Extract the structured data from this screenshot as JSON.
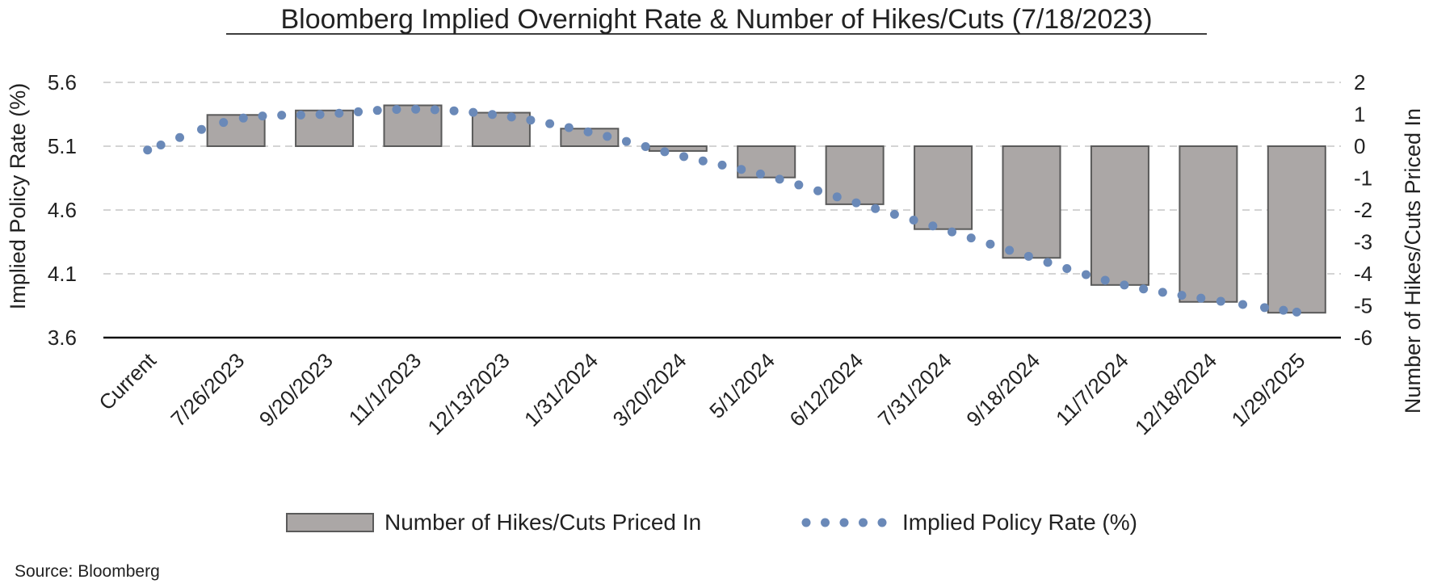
{
  "chart_data": {
    "type": "bar",
    "title": "Bloomberg Implied Overnight Rate & Number of Hikes/Cuts (7/18/2023)",
    "categories": [
      "Current",
      "7/26/2023",
      "9/20/2023",
      "11/1/2023",
      "12/13/2023",
      "1/31/2024",
      "3/20/2024",
      "5/1/2024",
      "6/12/2024",
      "7/31/2024",
      "9/18/2024",
      "11/7/2024",
      "12/18/2024",
      "1/29/2025"
    ],
    "series": [
      {
        "name": "Number of Hikes/Cuts Priced In",
        "type": "bar",
        "axis": "right",
        "color": "#aba7a6",
        "values": [
          null,
          0.98,
          1.12,
          1.28,
          1.05,
          0.55,
          -0.15,
          -0.98,
          -1.82,
          -2.6,
          -3.5,
          -4.35,
          -4.88,
          -5.22
        ]
      },
      {
        "name": "Implied Policy Rate (%)",
        "type": "dotted-line",
        "axis": "left",
        "color": "#6a89b8",
        "values": [
          5.07,
          5.31,
          5.35,
          5.39,
          5.34,
          5.21,
          5.03,
          4.87,
          4.66,
          4.45,
          4.23,
          4.02,
          3.9,
          3.8
        ]
      }
    ],
    "y_left": {
      "label": "Implied Policy Rate (%)",
      "ticks": [
        "3.6",
        "4.1",
        "4.6",
        "5.1",
        "5.6"
      ],
      "ylim": [
        3.6,
        5.6
      ]
    },
    "y_right": {
      "label": "Number of Hikes/Cuts Priced In",
      "ticks": [
        "-6",
        "-5",
        "-4",
        "-3",
        "-2",
        "-1",
        "0",
        "1",
        "2"
      ],
      "ylim": [
        -6,
        2
      ]
    },
    "grid": true,
    "legend": "bottom-center",
    "source": "Source: Bloomberg"
  }
}
